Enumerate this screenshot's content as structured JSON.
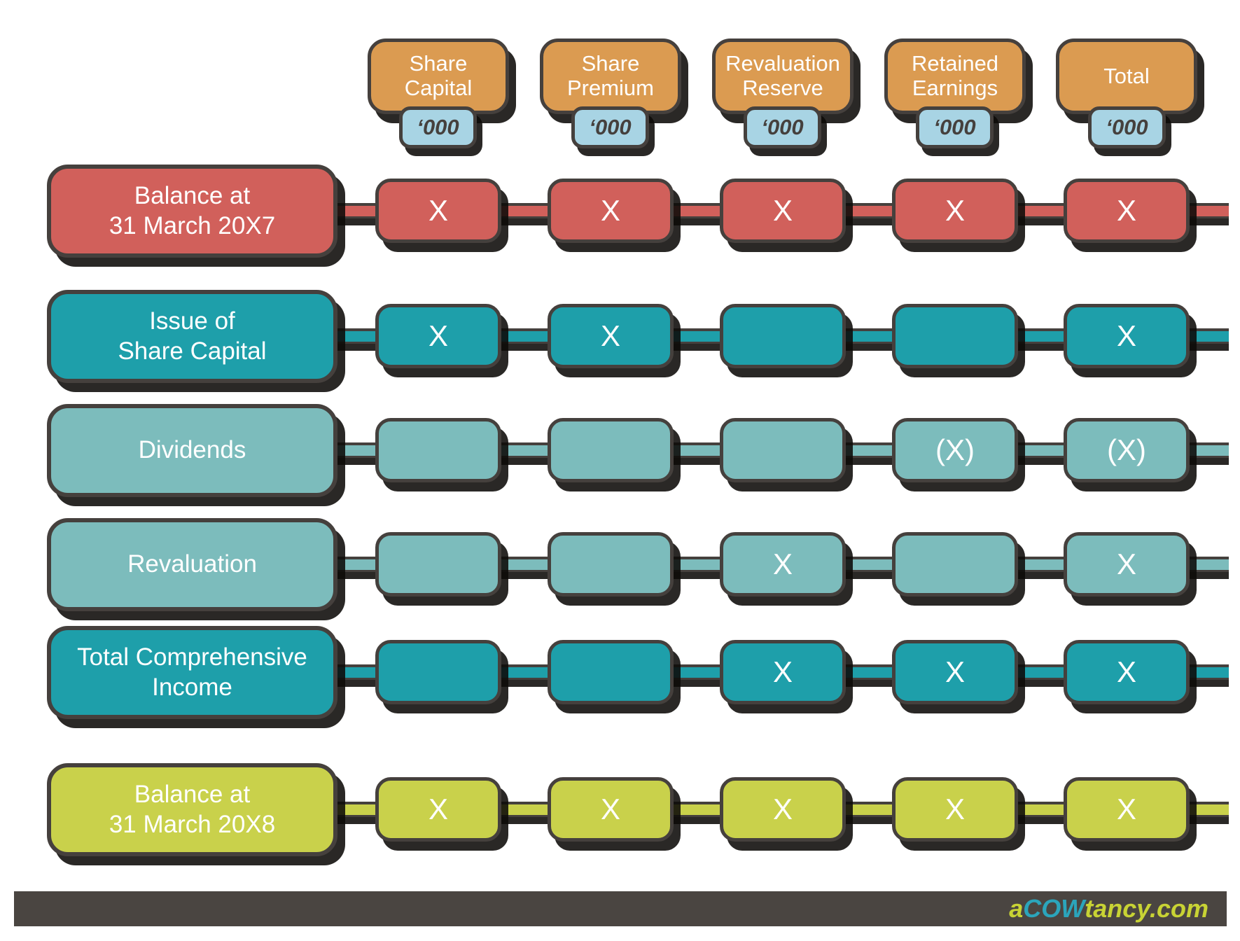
{
  "palette": {
    "header_orange": "#DB9B51",
    "badge_blue": "#A8D4E4",
    "row_red": "#D1605B",
    "row_teal": "#1E9FAA",
    "row_light_teal": "#7CBCBC",
    "row_lime": "#C9D14B",
    "outline_dark": "#45403D",
    "footer_bar": "#4A4541",
    "logo_teal": "#2BA5BB",
    "logo_lime": "#C8D334"
  },
  "columns": [
    {
      "label": "Share\nCapital",
      "unit": "‘000"
    },
    {
      "label": "Share\nPremium",
      "unit": "‘000"
    },
    {
      "label": "Revaluation\nReserve",
      "unit": "‘000"
    },
    {
      "label": "Retained\nEarnings",
      "unit": "‘000"
    },
    {
      "label": "Total",
      "unit": "‘000"
    }
  ],
  "rows": [
    {
      "label": "Balance at\n31 March 20X7",
      "cells": [
        "X",
        "X",
        "X",
        "X",
        "X"
      ]
    },
    {
      "label": "Issue of\nShare Capital",
      "cells": [
        "X",
        "X",
        "",
        "",
        "X"
      ]
    },
    {
      "label": "Dividends",
      "cells": [
        "",
        "",
        "",
        "(X)",
        "(X)"
      ]
    },
    {
      "label": "Revaluation",
      "cells": [
        "",
        "",
        "X",
        "",
        "X"
      ]
    },
    {
      "label": "Total Comprehensive\nIncome",
      "cells": [
        "",
        "",
        "X",
        "X",
        "X"
      ]
    },
    {
      "label": "Balance at\n31 March 20X8",
      "cells": [
        "X",
        "X",
        "X",
        "X",
        "X"
      ]
    }
  ],
  "footer": {
    "logo_prefix": "a",
    "logo_mid": "COW",
    "logo_suffix": "tancy.com"
  }
}
